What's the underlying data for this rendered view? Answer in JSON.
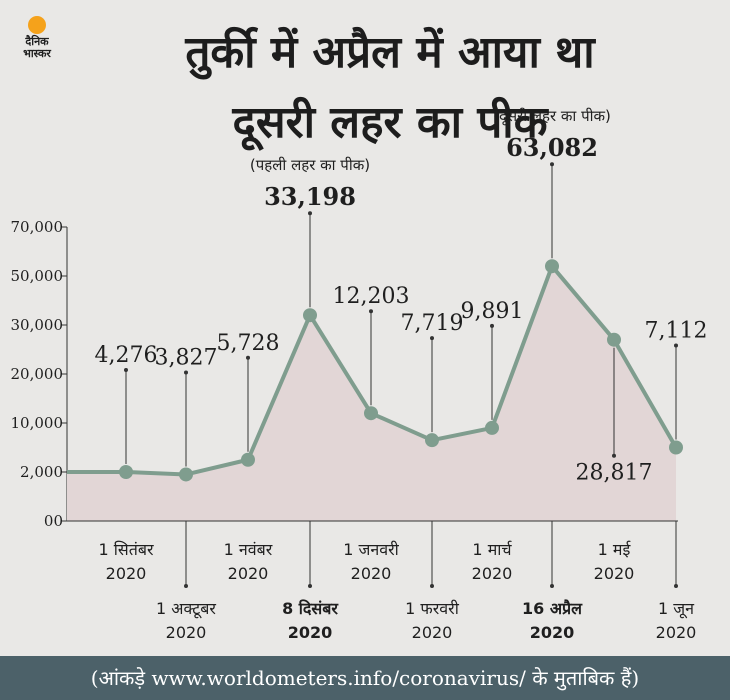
{
  "logo": {
    "line1": "दैनिक",
    "line2": "भास्कर"
  },
  "title_line1": "तुर्की में अप्रैल में आया था",
  "title_line2": "दूसरी लहर का पीक",
  "footer": "(आंकड़े www.worldometers.info/coronavirus/ के मुताबिक हैं)",
  "colors": {
    "line": "#7f9d8e",
    "area": "#e2d6d6",
    "text": "#1f1f1f",
    "footer_bg": "#4c6169"
  },
  "chart_data": {
    "type": "area",
    "ytick_labels": [
      "00",
      "2,000",
      "10,000",
      "20,000",
      "30,000",
      "50,000",
      "70,000"
    ],
    "points": [
      {
        "value_label": "",
        "y_tick": 1
      },
      {
        "value_label": "4,276",
        "y_tick": 1.0
      },
      {
        "value_label": "3,827",
        "y_tick": 0.95
      },
      {
        "value_label": "5,728",
        "y_tick": 1.25
      },
      {
        "value_label": "33,198",
        "y_tick": 4.2,
        "bold": true
      },
      {
        "value_label": "12,203",
        "y_tick": 2.2
      },
      {
        "value_label": "7,719",
        "y_tick": 1.65
      },
      {
        "value_label": "9,891",
        "y_tick": 1.9
      },
      {
        "value_label": "63,082",
        "y_tick": 5.2,
        "bold": true
      },
      {
        "value_label": "28,817",
        "y_tick": 3.7
      },
      {
        "value_label": "7,112",
        "y_tick": 1.5
      }
    ],
    "x_labels_top": [
      {
        "line1": "1 सितंबर",
        "line2": "2020"
      },
      {
        "line1": "1 नवंबर",
        "line2": "2020"
      },
      {
        "line1": "1 जनवरी",
        "line2": "2020"
      },
      {
        "line1": "1 मार्च",
        "line2": "2020"
      },
      {
        "line1": "1 मई",
        "line2": "2020"
      }
    ],
    "x_labels_bottom": [
      {
        "line1": "1 अक्टूबर",
        "line2": "2020",
        "bold": false
      },
      {
        "line1": "8 दिसंबर",
        "line2": "2020",
        "bold": true
      },
      {
        "line1": "1 फरवरी",
        "line2": "2020",
        "bold": false
      },
      {
        "line1": "16 अप्रैल",
        "line2": "2020",
        "bold": true
      },
      {
        "line1": "1 जून",
        "line2": "2020",
        "bold": false
      }
    ],
    "annotations": [
      {
        "text": "(पहली लहर का पीक)",
        "point_index": 4
      },
      {
        "text": "(दूसरी लहर का पीक)",
        "point_index": 8
      }
    ]
  }
}
